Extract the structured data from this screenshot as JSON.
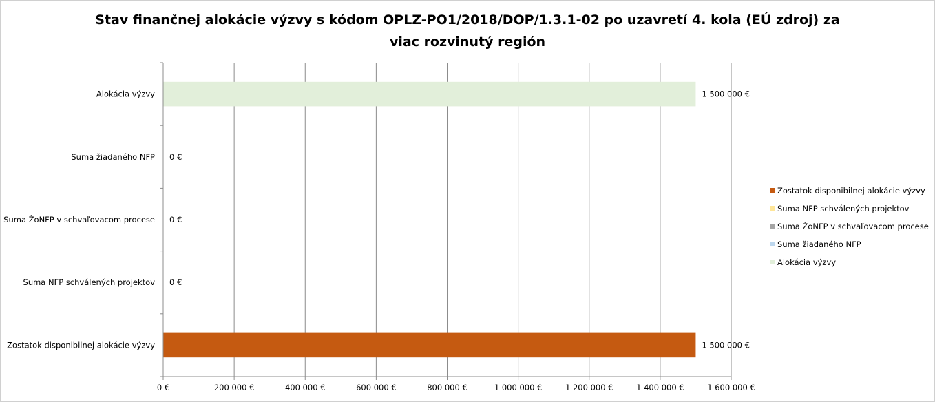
{
  "chart_data": {
    "type": "bar",
    "orientation": "horizontal",
    "title_lines": [
      "Stav finančnej alokácie výzvy s kódom OPLZ-PO1/2018/DOP/1.3.1-02 po uzavretí 4. kola (EÚ zdroj) za",
      "viac rozvinutý región"
    ],
    "categories": [
      "Alokácia výzvy",
      "Suma žiadaného NFP",
      "Suma ŽoNFP v schvaľovacom procese",
      "Suma NFP schválených projektov",
      "Zostatok disponibilnej alokácie výzvy"
    ],
    "values": [
      1500000,
      0,
      0,
      0,
      1500000
    ],
    "value_labels": [
      "1 500 000 €",
      "0 €",
      "0 €",
      "0 €",
      "1 500 000 €"
    ],
    "colors": [
      "#e2efda",
      "#bdd7ee",
      "#a5a5a5",
      "#ffe699",
      "#c55a11"
    ],
    "xlim": [
      0,
      1600000
    ],
    "x_ticks": [
      0,
      200000,
      400000,
      600000,
      800000,
      1000000,
      1200000,
      1400000,
      1600000
    ],
    "x_tick_labels": [
      "0 €",
      "200 000 €",
      "400 000 €",
      "600 000 €",
      "800 000 €",
      "1 000 000 €",
      "1 200 000 €",
      "1 400 000 €",
      "1 600 000 €"
    ],
    "grid": true,
    "legend_position": "right",
    "legend": [
      {
        "label": "Zostatok disponibilnej alokácie výzvy",
        "color": "#c55a11"
      },
      {
        "label": "Suma NFP schválených projektov",
        "color": "#ffe699"
      },
      {
        "label": "Suma ŽoNFP v schvaľovacom procese",
        "color": "#a5a5a5"
      },
      {
        "label": "Suma žiadaného NFP",
        "color": "#bdd7ee"
      },
      {
        "label": "Alokácia výzvy",
        "color": "#e2efda"
      }
    ]
  }
}
